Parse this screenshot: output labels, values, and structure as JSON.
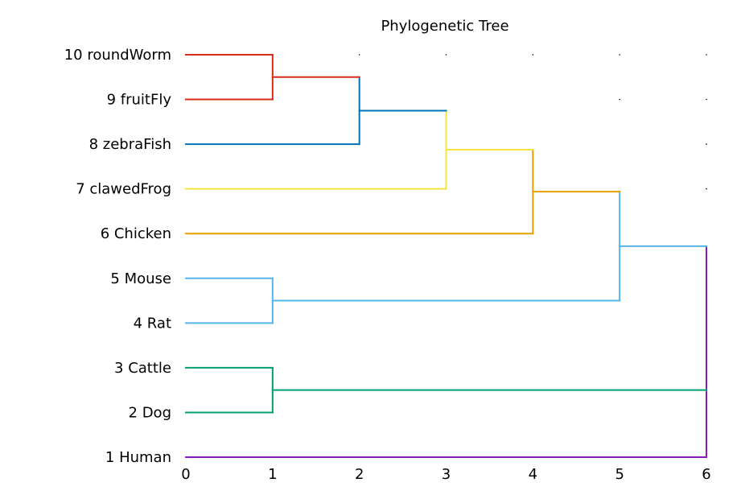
{
  "chart_data": {
    "type": "dendrogram",
    "title": "Phylogenetic Tree",
    "xlabel": "",
    "ylabel": "",
    "xlim": [
      0,
      6
    ],
    "x_ticks": [
      "0",
      "1",
      "2",
      "3",
      "4",
      "5",
      "6"
    ],
    "grid": "dots",
    "leaves": [
      {
        "label": "1 Human",
        "color": "#8b1ab8"
      },
      {
        "label": "2 Dog",
        "color": "#009e73"
      },
      {
        "label": "3 Cattle",
        "color": "#009e73"
      },
      {
        "label": "4 Rat",
        "color": "#56b4e9"
      },
      {
        "label": "5 Mouse",
        "color": "#56b4e9"
      },
      {
        "label": "6 Chicken",
        "color": "#e69f00"
      },
      {
        "label": "7 clawedFrog",
        "color": "#f0e442"
      },
      {
        "label": "8 zebraFish",
        "color": "#0072b2"
      },
      {
        "label": "9 fruitFly",
        "color": "#d62c1a"
      },
      {
        "label": "10 roundWorm",
        "color": "#d62c1a"
      }
    ],
    "merges": [
      {
        "id": "n_wf",
        "children": [
          9,
          10
        ],
        "height": 1,
        "color": "#d62c1a"
      },
      {
        "id": "n_zwf",
        "children": [
          8,
          "n_wf"
        ],
        "height": 2,
        "color": "#0072b2"
      },
      {
        "id": "n_fzwf",
        "children": [
          7,
          "n_zwf"
        ],
        "height": 3,
        "color": "#f0e442"
      },
      {
        "id": "n_cfzwf",
        "children": [
          6,
          "n_fzwf"
        ],
        "height": 4,
        "color": "#e69f00"
      },
      {
        "id": "n_rm",
        "children": [
          4,
          5
        ],
        "height": 1,
        "color": "#56b4e9"
      },
      {
        "id": "n_top5",
        "children": [
          "n_rm",
          "n_cfzwf"
        ],
        "height": 5,
        "color": "#56b4e9"
      },
      {
        "id": "n_dc",
        "children": [
          2,
          3
        ],
        "height": 1,
        "color": "#009e73"
      },
      {
        "id": "n_root",
        "children": [
          1,
          "n_dc",
          "n_top5"
        ],
        "height": 6,
        "color": "#8b1ab8"
      }
    ]
  }
}
